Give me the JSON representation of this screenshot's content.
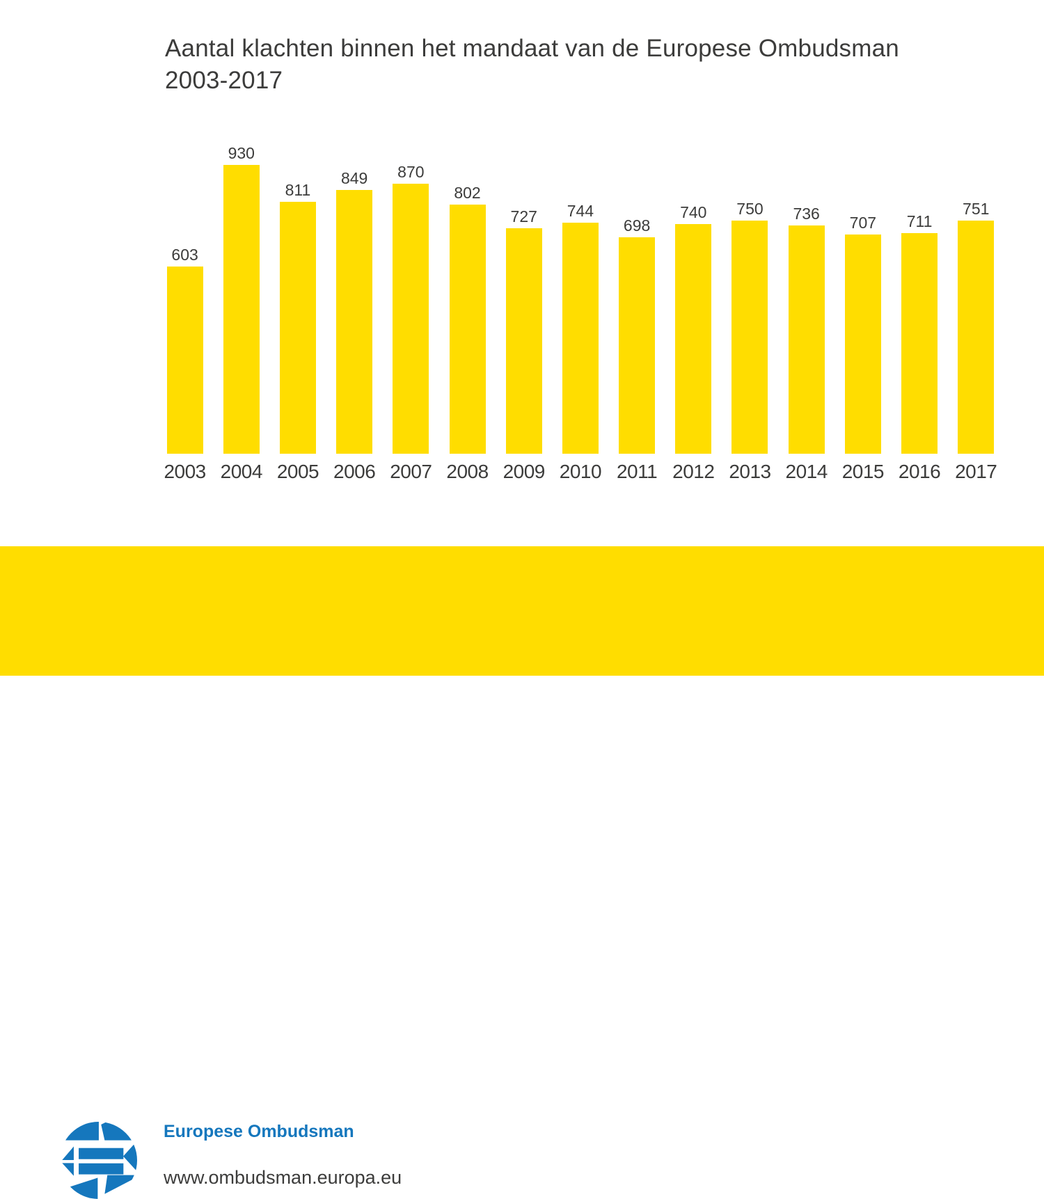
{
  "title": {
    "line1": "Aantal klachten binnen het mandaat van de Europese Ombudsman",
    "line2": "2003-2017"
  },
  "chart_data": {
    "type": "bar",
    "title": "Aantal klachten binnen het mandaat van de Europese Ombudsman 2003-2017",
    "categories": [
      "2003",
      "2004",
      "2005",
      "2006",
      "2007",
      "2008",
      "2009",
      "2010",
      "2011",
      "2012",
      "2013",
      "2014",
      "2015",
      "2016",
      "2017"
    ],
    "values": [
      603,
      930,
      811,
      849,
      870,
      802,
      727,
      744,
      698,
      740,
      750,
      736,
      707,
      711,
      751
    ],
    "xlabel": "",
    "ylabel": "",
    "ylim": [
      0,
      930
    ],
    "grid": false,
    "legend": false,
    "axis_lines": false,
    "value_labels_shown": true,
    "bar_color": "#FFDD00",
    "label_color": "#3C3C3B"
  },
  "footer": {
    "org_name": "Europese Ombudsman",
    "website": "www.ombudsman.europa.eu",
    "logo": "european-ombudsman-logo",
    "background_color": "#FFDD00"
  },
  "colors": {
    "accent_yellow": "#FFDD00",
    "brand_blue": "#1577BD",
    "text_dark": "#3C3C3B"
  }
}
